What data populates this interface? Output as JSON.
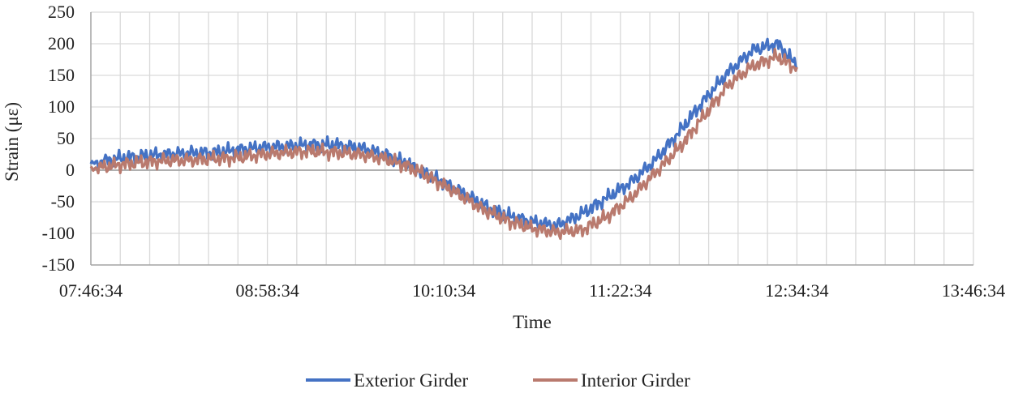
{
  "chart_data": {
    "type": "line",
    "title": "",
    "xlabel": "Time",
    "ylabel": "Strain (με)",
    "ylim": [
      -150,
      250
    ],
    "y_ticks": [
      -150,
      -100,
      -50,
      0,
      50,
      100,
      150,
      200,
      250
    ],
    "x_tick_labels": [
      "07:46:34",
      "08:58:34",
      "10:10:34",
      "11:22:34",
      "12:34:34",
      "13:46:34"
    ],
    "x_range_minutes": [
      0,
      360
    ],
    "grid": true,
    "legend_position": "bottom",
    "series": [
      {
        "name": "Exterior Girder",
        "color": "#4472C4",
        "x": [
          0,
          10,
          20,
          30,
          40,
          50,
          60,
          70,
          80,
          90,
          100,
          110,
          120,
          130,
          140,
          150,
          160,
          170,
          180,
          190,
          200,
          210,
          220,
          230,
          240,
          250,
          260,
          270,
          280,
          288
        ],
        "y": [
          10,
          18,
          22,
          25,
          27,
          28,
          32,
          36,
          38,
          40,
          40,
          35,
          25,
          8,
          -12,
          -32,
          -55,
          -72,
          -82,
          -88,
          -70,
          -45,
          -20,
          15,
          60,
          110,
          155,
          190,
          200,
          165
        ]
      },
      {
        "name": "Interior Girder",
        "color": "#B97A6E",
        "x": [
          0,
          10,
          20,
          30,
          40,
          50,
          60,
          70,
          80,
          90,
          100,
          110,
          120,
          130,
          140,
          150,
          160,
          170,
          180,
          190,
          200,
          210,
          220,
          230,
          240,
          250,
          260,
          270,
          280,
          288
        ],
        "y": [
          2,
          8,
          12,
          15,
          16,
          18,
          20,
          25,
          28,
          30,
          28,
          25,
          18,
          5,
          -15,
          -38,
          -62,
          -80,
          -92,
          -98,
          -95,
          -75,
          -45,
          -5,
          35,
          85,
          135,
          165,
          180,
          160
        ]
      }
    ]
  }
}
